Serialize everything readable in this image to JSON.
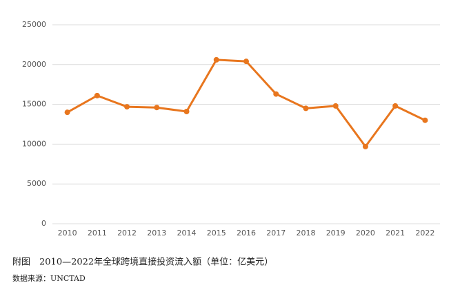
{
  "chart_data": {
    "type": "line",
    "categories": [
      "2010",
      "2011",
      "2012",
      "2013",
      "2014",
      "2015",
      "2016",
      "2017",
      "2018",
      "2019",
      "2020",
      "2021",
      "2022"
    ],
    "series": [
      {
        "color": "#e8761e",
        "values": [
          14000,
          16100,
          14700,
          14600,
          14100,
          20600,
          20400,
          16300,
          14500,
          14800,
          9700,
          14800,
          13000
        ]
      }
    ],
    "ylim": [
      0,
      25000
    ],
    "yticks": [
      0,
      5000,
      10000,
      15000,
      20000,
      25000
    ],
    "grid": true,
    "caption": "附图　2010—2022年全球跨境直接投资流入额（单位：亿美元）",
    "source": "数据来源：UNCTAD"
  }
}
